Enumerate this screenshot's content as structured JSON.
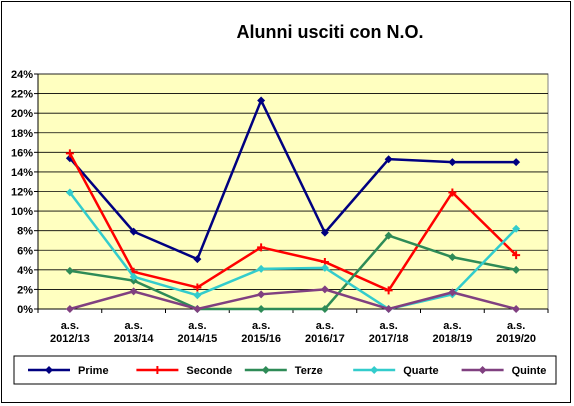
{
  "chart_data": {
    "type": "line",
    "title": "Alunni usciti con N.O.",
    "xlabel": "",
    "ylabel": "",
    "ylim": [
      0,
      24
    ],
    "y_tick_step": 2,
    "y_tick_suffix": "%",
    "grid": "horizontal",
    "legend_position": "bottom",
    "plot_background": "#FFFFC0",
    "categories": [
      [
        "a.s.",
        "2012/13"
      ],
      [
        "a.s.",
        "2013/14"
      ],
      [
        "a.s.",
        "2014/15"
      ],
      [
        "a.s.",
        "2015/16"
      ],
      [
        "a.s.",
        "2016/17"
      ],
      [
        "a.s.",
        "2017/18"
      ],
      [
        "a.s.",
        "2018/19"
      ],
      [
        "a.s.",
        "2019/20"
      ]
    ],
    "series": [
      {
        "name": "Prime",
        "color": "#000080",
        "marker": "diamond",
        "values": [
          15.4,
          7.9,
          5.1,
          21.3,
          7.8,
          15.3,
          15.0,
          15.0
        ]
      },
      {
        "name": "Seconde",
        "color": "#FF0000",
        "marker": "plus",
        "values": [
          15.9,
          3.8,
          2.2,
          6.3,
          4.8,
          1.9,
          11.9,
          5.5
        ]
      },
      {
        "name": "Terze",
        "color": "#2E8B57",
        "marker": "diamond",
        "values": [
          3.9,
          2.9,
          0,
          0,
          0,
          7.5,
          5.3,
          4.0
        ]
      },
      {
        "name": "Quarte",
        "color": "#33CCCC",
        "marker": "diamond",
        "values": [
          11.9,
          3.3,
          1.4,
          4.1,
          4.2,
          0,
          1.5,
          8.2
        ]
      },
      {
        "name": "Quinte",
        "color": "#804080",
        "marker": "diamond",
        "values": [
          0,
          1.8,
          0,
          1.5,
          2.0,
          0,
          1.7,
          0
        ]
      }
    ]
  }
}
